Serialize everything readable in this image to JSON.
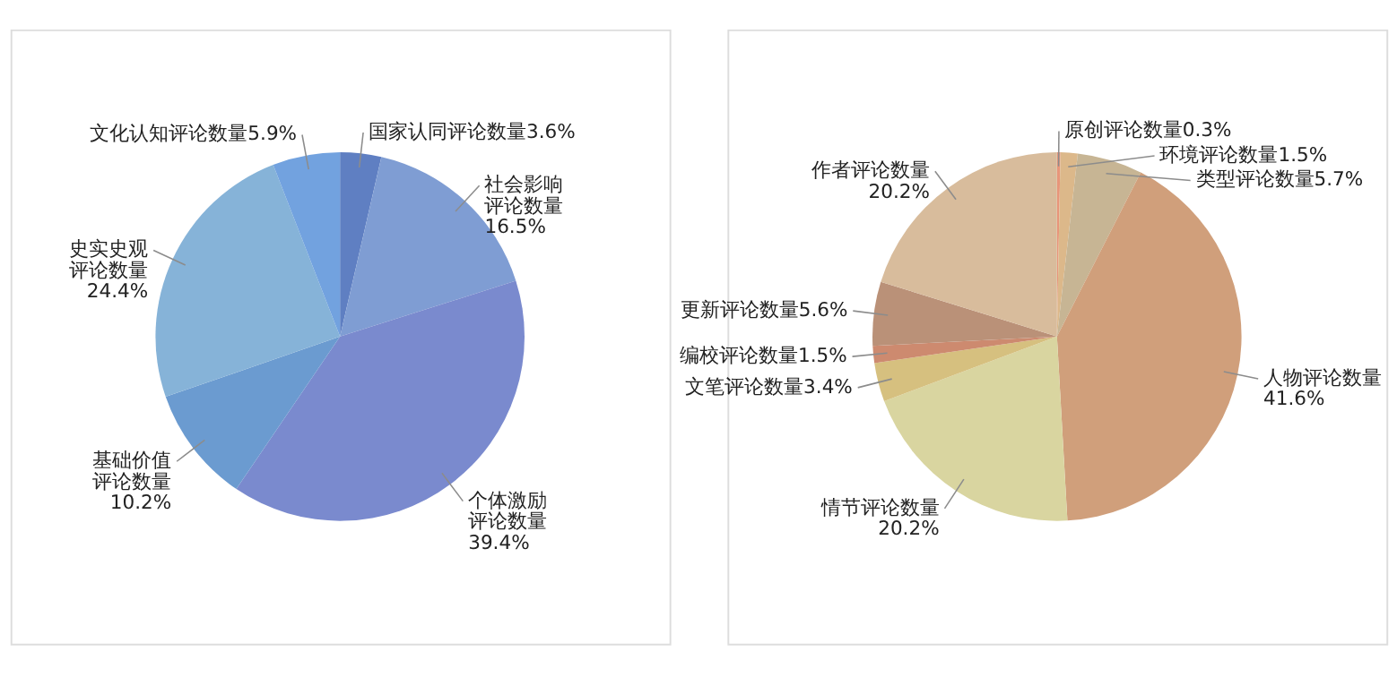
{
  "chart_data": [
    {
      "type": "pie",
      "categories": [
        "国家认同评论数量",
        "社会影响评论数量",
        "个体激励评论数量",
        "基础价值评论数量",
        "史实史观评论数量",
        "文化认知评论数量"
      ],
      "values": [
        3.6,
        16.5,
        39.4,
        10.2,
        24.4,
        5.9
      ],
      "value_labels": [
        "3.6%",
        "16.5%",
        "39.4%",
        "10.2%",
        "24.4%",
        "5.9%"
      ],
      "colors": [
        "#5f7fc2",
        "#7f9dd3",
        "#7a8ace",
        "#6b9bd0",
        "#86b3d8",
        "#72a2df"
      ]
    },
    {
      "type": "pie",
      "categories": [
        "原创评论数量",
        "环境评论数量",
        "类型评论数量",
        "人物评论数量",
        "情节评论数量",
        "文笔评论数量",
        "编校评论数量",
        "更新评论数量",
        "作者评论数量"
      ],
      "values": [
        0.3,
        1.5,
        5.7,
        41.6,
        20.2,
        3.4,
        1.5,
        5.6,
        20.2
      ],
      "value_labels": [
        "0.3%",
        "1.5%",
        "5.7%",
        "41.6%",
        "20.2%",
        "3.4%",
        "1.5%",
        "5.6%",
        "20.2%"
      ],
      "colors": [
        "#e8957a",
        "#dcb88a",
        "#c7b594",
        "#d09f7b",
        "#d9d5a0",
        "#d6c07f",
        "#cd8a6f",
        "#ba9178",
        "#d8bc9c"
      ]
    }
  ]
}
